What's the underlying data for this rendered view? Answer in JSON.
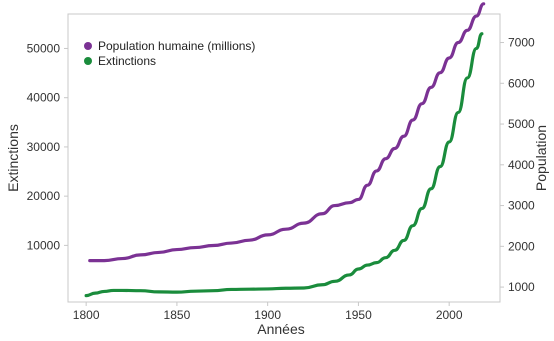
{
  "chart_data": {
    "type": "line",
    "xlabel": "Années",
    "ylabel_left": "Extinctions",
    "ylabel_right": "Population",
    "xlim": [
      1790,
      2028
    ],
    "ylim_left": [
      -1500,
      57000
    ],
    "ylim_right": [
      634,
      7700
    ],
    "x_ticks": [
      1800,
      1850,
      1900,
      1950,
      2000
    ],
    "y_ticks_left": [
      10000,
      20000,
      30000,
      40000,
      50000
    ],
    "y_ticks_right": [
      1000,
      2000,
      3000,
      4000,
      5000,
      6000,
      7000
    ],
    "grid": false,
    "legend_position": "top-left",
    "series": [
      {
        "name": "Population humaine (millions)",
        "axis": "right",
        "color": "#7b3294",
        "points": [
          [
            1802,
            1650
          ],
          [
            1810,
            1650
          ],
          [
            1820,
            1700
          ],
          [
            1830,
            1790
          ],
          [
            1840,
            1850
          ],
          [
            1850,
            1920
          ],
          [
            1860,
            1970
          ],
          [
            1870,
            2020
          ],
          [
            1880,
            2080
          ],
          [
            1890,
            2150
          ],
          [
            1900,
            2280
          ],
          [
            1910,
            2420
          ],
          [
            1920,
            2570
          ],
          [
            1930,
            2800
          ],
          [
            1937,
            3000
          ],
          [
            1945,
            3070
          ],
          [
            1950,
            3150
          ],
          [
            1955,
            3500
          ],
          [
            1960,
            3850
          ],
          [
            1965,
            4150
          ],
          [
            1970,
            4400
          ],
          [
            1975,
            4700
          ],
          [
            1980,
            5100
          ],
          [
            1985,
            5500
          ],
          [
            1990,
            5900
          ],
          [
            1995,
            6260
          ],
          [
            2000,
            6620
          ],
          [
            2005,
            7000
          ],
          [
            2010,
            7300
          ],
          [
            2015,
            7650
          ],
          [
            2019,
            7950
          ]
        ]
      },
      {
        "name": "Extinctions",
        "axis": "left",
        "color": "#1a8c3c",
        "points": [
          [
            1800,
            -200
          ],
          [
            1805,
            300
          ],
          [
            1810,
            650
          ],
          [
            1815,
            850
          ],
          [
            1820,
            850
          ],
          [
            1830,
            800
          ],
          [
            1840,
            550
          ],
          [
            1850,
            500
          ],
          [
            1860,
            700
          ],
          [
            1870,
            800
          ],
          [
            1880,
            1050
          ],
          [
            1890,
            1100
          ],
          [
            1900,
            1150
          ],
          [
            1910,
            1300
          ],
          [
            1920,
            1350
          ],
          [
            1930,
            2000
          ],
          [
            1937,
            2700
          ],
          [
            1945,
            4000
          ],
          [
            1950,
            5200
          ],
          [
            1955,
            6000
          ],
          [
            1960,
            6500
          ],
          [
            1965,
            7500
          ],
          [
            1970,
            9000
          ],
          [
            1975,
            11000
          ],
          [
            1980,
            14000
          ],
          [
            1985,
            17500
          ],
          [
            1990,
            21500
          ],
          [
            1995,
            26000
          ],
          [
            2000,
            31000
          ],
          [
            2005,
            37000
          ],
          [
            2010,
            44000
          ],
          [
            2015,
            50000
          ],
          [
            2018,
            53000
          ]
        ]
      }
    ]
  }
}
